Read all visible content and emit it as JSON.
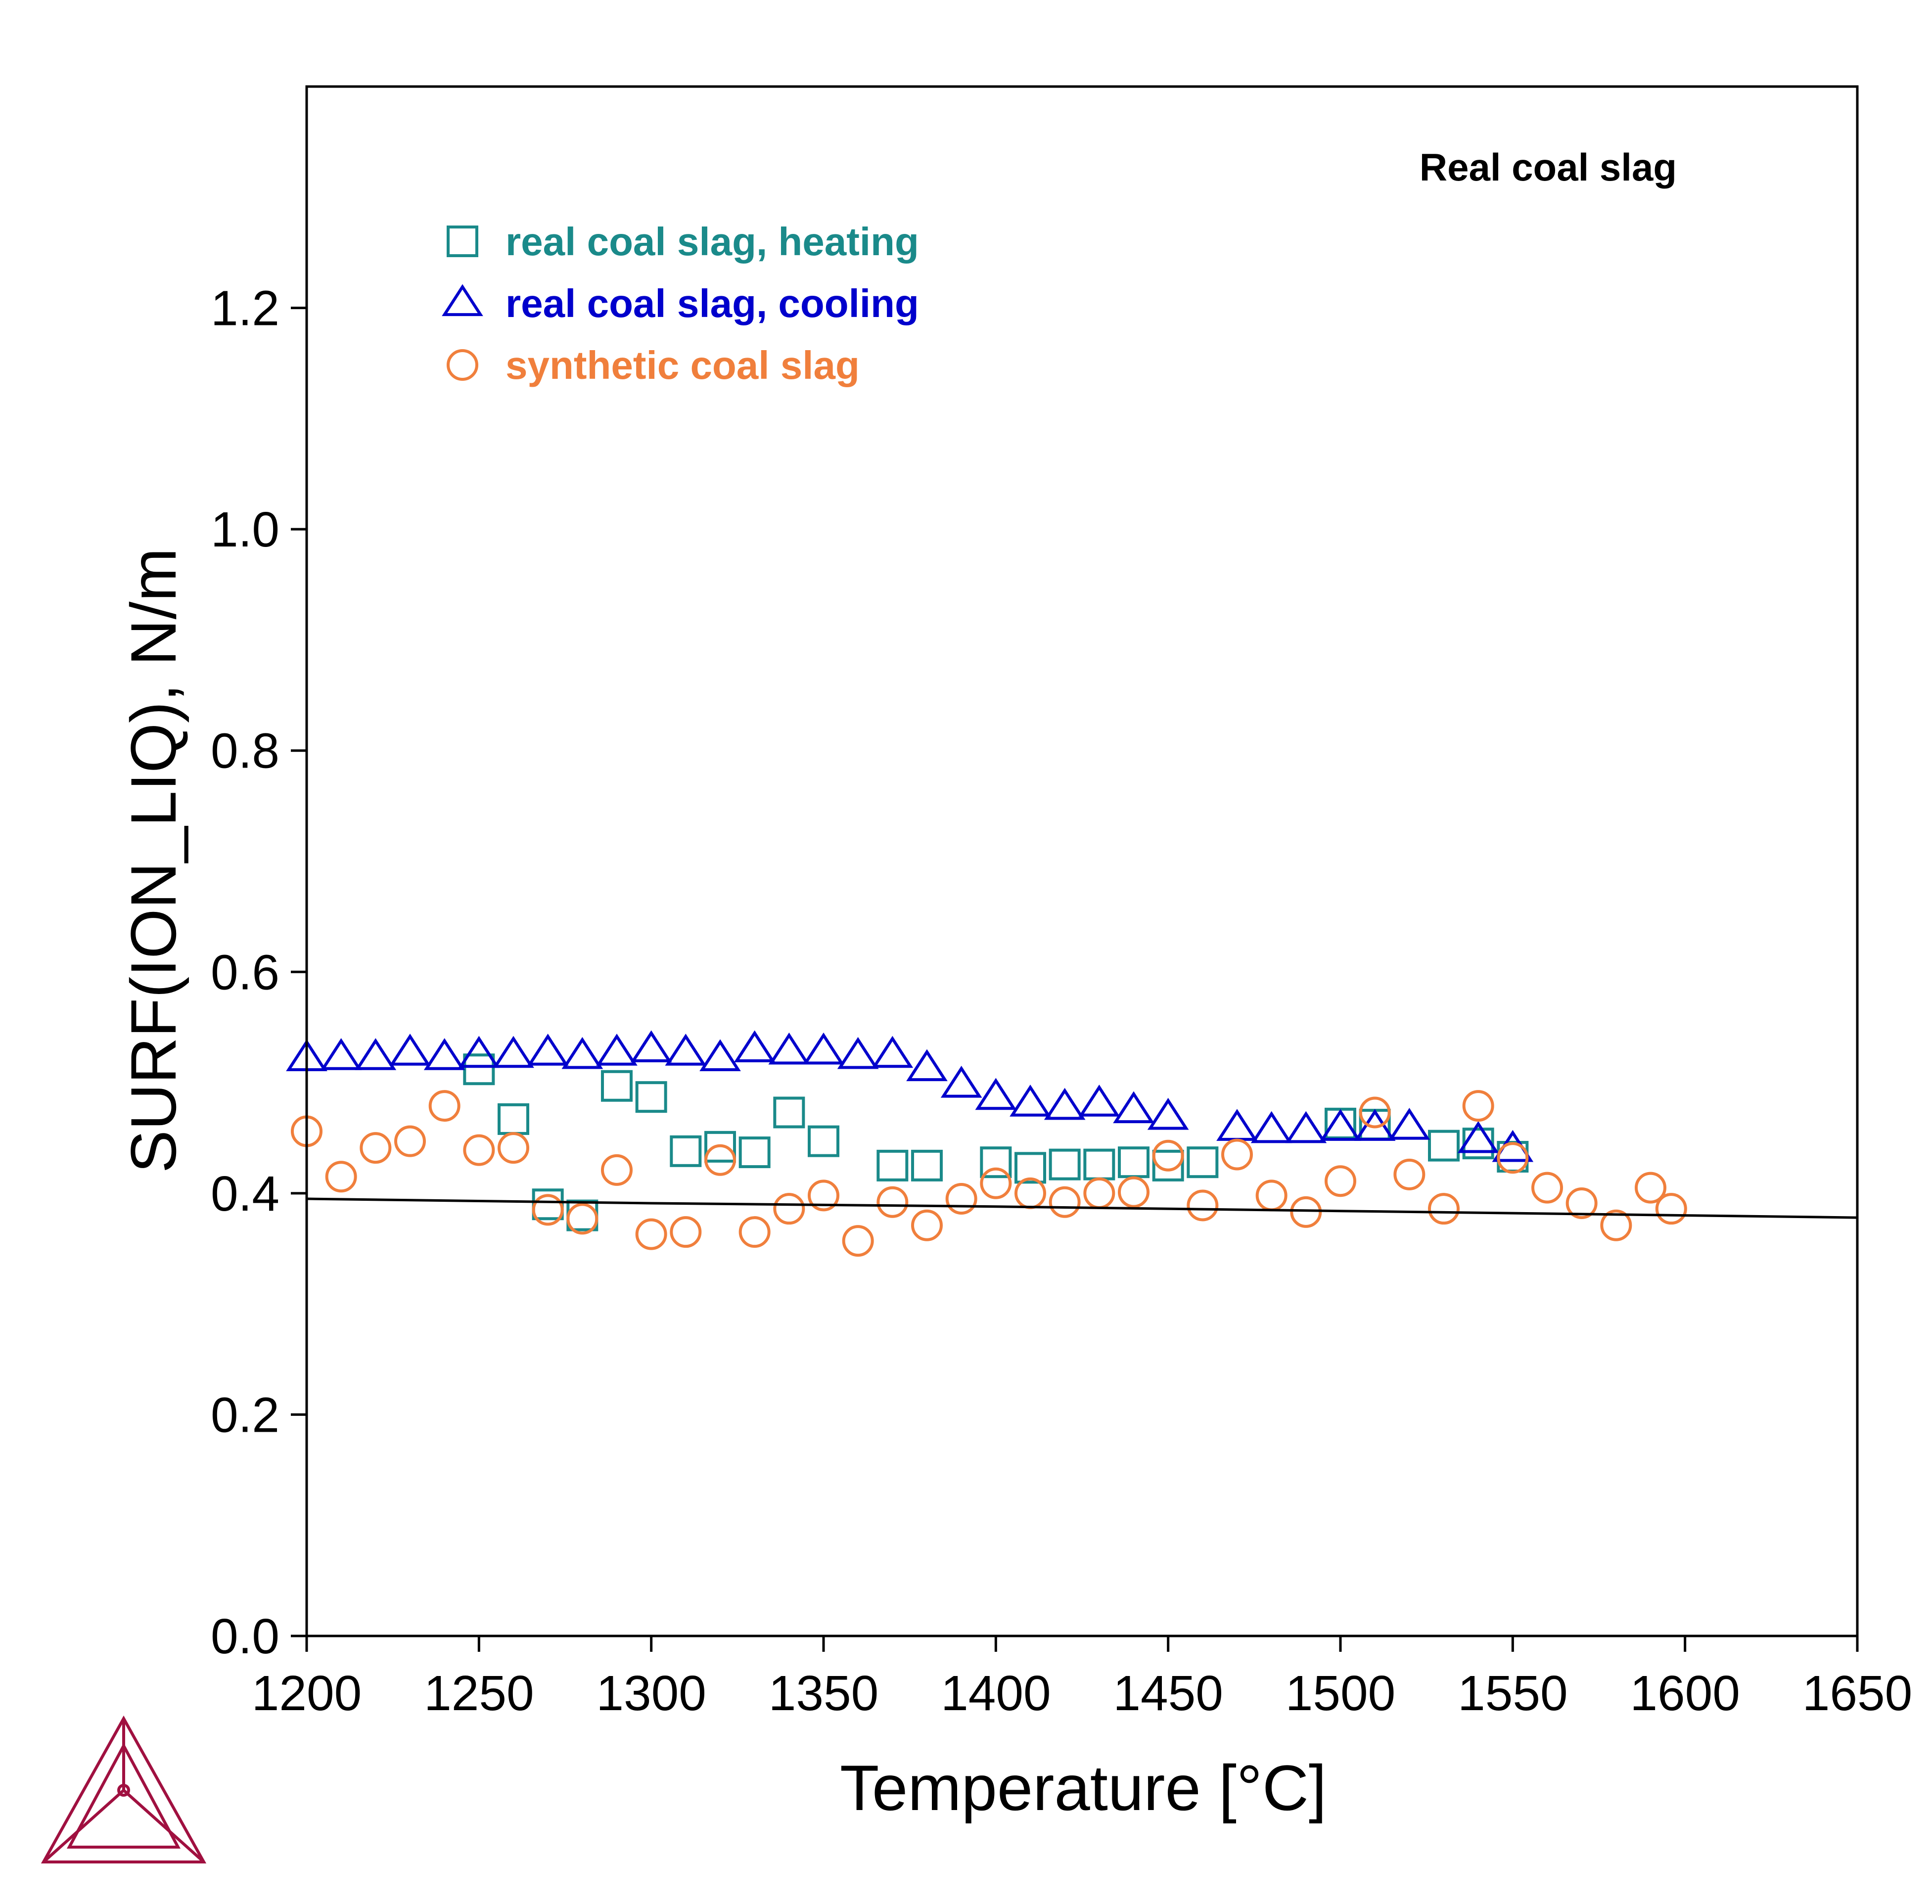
{
  "chart_data": {
    "type": "scatter",
    "title": "",
    "xlabel": "Temperature [°C]",
    "ylabel": "SURF(ION_LIQ), N/m",
    "xlim": [
      1200,
      1650
    ],
    "ylim": [
      0.0,
      1.4
    ],
    "x_ticks": [
      1200,
      1250,
      1300,
      1350,
      1400,
      1450,
      1500,
      1550,
      1600,
      1650
    ],
    "y_ticks": [
      0.0,
      0.2,
      0.4,
      0.6,
      0.8,
      1.0,
      1.2
    ],
    "x_tick_labels": [
      "1200",
      "1250",
      "1300",
      "1350",
      "1400",
      "1450",
      "1500",
      "1550",
      "1600",
      "1650"
    ],
    "y_tick_labels": [
      "0.0",
      "0.2",
      "0.4",
      "0.6",
      "0.8",
      "1.0",
      "1.2"
    ],
    "grid": false,
    "annotation": "Real coal slag",
    "legend_position": "top-left",
    "series": [
      {
        "name": "real coal slag, heating",
        "marker": "square",
        "color": "#1a8a8a",
        "points": [
          [
            1250,
            0.512
          ],
          [
            1260,
            0.467
          ],
          [
            1270,
            0.39
          ],
          [
            1280,
            0.38
          ],
          [
            1290,
            0.497
          ],
          [
            1300,
            0.487
          ],
          [
            1310,
            0.438
          ],
          [
            1320,
            0.442
          ],
          [
            1330,
            0.437
          ],
          [
            1340,
            0.473
          ],
          [
            1350,
            0.447
          ],
          [
            1370,
            0.425
          ],
          [
            1380,
            0.425
          ],
          [
            1400,
            0.428
          ],
          [
            1410,
            0.423
          ],
          [
            1420,
            0.426
          ],
          [
            1430,
            0.426
          ],
          [
            1440,
            0.428
          ],
          [
            1450,
            0.425
          ],
          [
            1460,
            0.428
          ],
          [
            1500,
            0.463
          ],
          [
            1510,
            0.462
          ],
          [
            1530,
            0.443
          ],
          [
            1540,
            0.445
          ],
          [
            1550,
            0.433
          ]
        ]
      },
      {
        "name": "real coal slag, cooling",
        "marker": "triangle",
        "color": "#0000cc",
        "points": [
          [
            1200,
            0.522
          ],
          [
            1210,
            0.523
          ],
          [
            1220,
            0.523
          ],
          [
            1230,
            0.527
          ],
          [
            1240,
            0.523
          ],
          [
            1250,
            0.525
          ],
          [
            1260,
            0.525
          ],
          [
            1270,
            0.527
          ],
          [
            1280,
            0.524
          ],
          [
            1290,
            0.527
          ],
          [
            1300,
            0.53
          ],
          [
            1310,
            0.527
          ],
          [
            1320,
            0.522
          ],
          [
            1330,
            0.53
          ],
          [
            1340,
            0.528
          ],
          [
            1350,
            0.528
          ],
          [
            1360,
            0.524
          ],
          [
            1370,
            0.525
          ],
          [
            1380,
            0.513
          ],
          [
            1390,
            0.498
          ],
          [
            1400,
            0.487
          ],
          [
            1410,
            0.481
          ],
          [
            1420,
            0.478
          ],
          [
            1430,
            0.481
          ],
          [
            1440,
            0.475
          ],
          [
            1450,
            0.469
          ],
          [
            1470,
            0.459
          ],
          [
            1480,
            0.457
          ],
          [
            1490,
            0.457
          ],
          [
            1500,
            0.459
          ],
          [
            1510,
            0.459
          ],
          [
            1520,
            0.46
          ],
          [
            1540,
            0.448
          ],
          [
            1550,
            0.44
          ]
        ]
      },
      {
        "name": "synthetic coal slag",
        "marker": "circle",
        "color": "#f07f3c",
        "points": [
          [
            1200,
            0.456
          ],
          [
            1210,
            0.415
          ],
          [
            1220,
            0.441
          ],
          [
            1230,
            0.447
          ],
          [
            1240,
            0.479
          ],
          [
            1250,
            0.439
          ],
          [
            1260,
            0.441
          ],
          [
            1270,
            0.385
          ],
          [
            1280,
            0.377
          ],
          [
            1290,
            0.421
          ],
          [
            1300,
            0.363
          ],
          [
            1310,
            0.365
          ],
          [
            1320,
            0.43
          ],
          [
            1330,
            0.365
          ],
          [
            1340,
            0.386
          ],
          [
            1350,
            0.398
          ],
          [
            1360,
            0.357
          ],
          [
            1370,
            0.392
          ],
          [
            1380,
            0.371
          ],
          [
            1390,
            0.395
          ],
          [
            1400,
            0.409
          ],
          [
            1410,
            0.4
          ],
          [
            1420,
            0.392
          ],
          [
            1430,
            0.4
          ],
          [
            1440,
            0.401
          ],
          [
            1450,
            0.434
          ],
          [
            1460,
            0.389
          ],
          [
            1470,
            0.435
          ],
          [
            1480,
            0.398
          ],
          [
            1490,
            0.383
          ],
          [
            1500,
            0.411
          ],
          [
            1510,
            0.473
          ],
          [
            1520,
            0.417
          ],
          [
            1530,
            0.386
          ],
          [
            1540,
            0.479
          ],
          [
            1550,
            0.432
          ],
          [
            1560,
            0.405
          ],
          [
            1570,
            0.391
          ],
          [
            1580,
            0.371
          ],
          [
            1590,
            0.405
          ],
          [
            1596,
            0.386
          ]
        ]
      },
      {
        "name": "",
        "marker": "line",
        "color": "#000000",
        "points": [
          [
            1200,
            0.395
          ],
          [
            1300,
            0.391
          ],
          [
            1400,
            0.388
          ],
          [
            1500,
            0.384
          ],
          [
            1600,
            0.38
          ],
          [
            1650,
            0.378
          ]
        ]
      }
    ]
  }
}
